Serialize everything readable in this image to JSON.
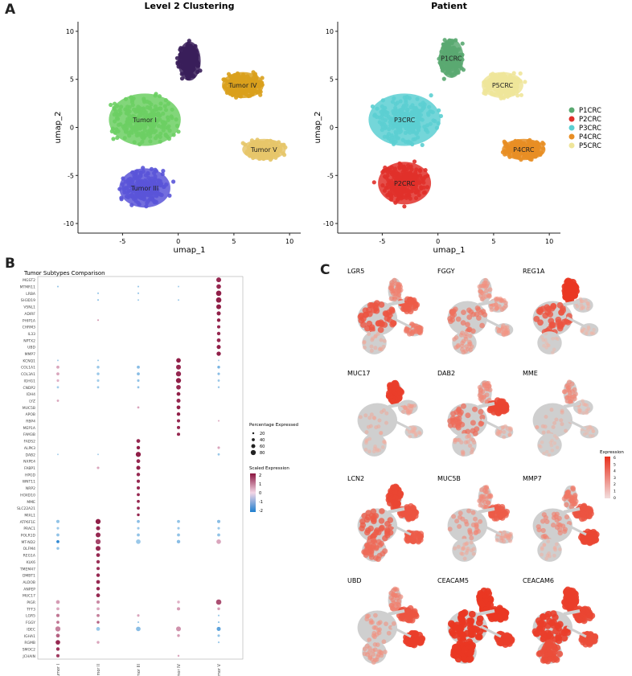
{
  "panels": {
    "a": "A",
    "b": "B",
    "c": "C"
  },
  "colors": {
    "Tumor I": "#6ccf63",
    "Tumor II": "#3a1e5a",
    "Tumor III": "#5a55d8",
    "Tumor IV": "#d9a01c",
    "Tumor V": "#e6c66a",
    "P1CRC": "#5aa971",
    "P2CRC": "#e0302a",
    "P3CRC": "#5ccfd2",
    "P4CRC": "#e88e24",
    "P5CRC": "#efe59a",
    "grey": "#cfcfcf",
    "feat_low": "#f7c0b0",
    "feat_high": "#e8301c"
  },
  "chart_data": [
    {
      "id": "umap_clusters",
      "type": "scatter",
      "title": "Level 2 Clustering",
      "xlabel": "umap_1",
      "ylabel": "umap_2",
      "xlim": [
        -9,
        11
      ],
      "ylim": [
        -11,
        11
      ],
      "xticks": [
        -5,
        0,
        5,
        10
      ],
      "yticks": [
        10,
        5,
        0,
        -5,
        -10
      ],
      "series": [
        {
          "name": "Tumor I",
          "label": "Tumor I",
          "center": [
            -3,
            0.8
          ],
          "spread": [
            3.8,
            3.2
          ]
        },
        {
          "name": "Tumor II",
          "label": "",
          "center": [
            1.0,
            6.9
          ],
          "spread": [
            1.2,
            2.4
          ]
        },
        {
          "name": "Tumor III",
          "label": "Tumor III",
          "center": [
            -3,
            -6.3
          ],
          "spread": [
            2.7,
            2.4
          ]
        },
        {
          "name": "Tumor IV",
          "label": "Tumor IV",
          "center": [
            5.8,
            4.4
          ],
          "spread": [
            2.2,
            1.6
          ]
        },
        {
          "name": "Tumor V",
          "label": "Tumor V",
          "center": [
            7.7,
            -2.3
          ],
          "spread": [
            2.3,
            1.3
          ]
        }
      ]
    },
    {
      "id": "umap_patient",
      "type": "scatter",
      "title": "Patient",
      "xlabel": "umap_1",
      "ylabel": "umap_2",
      "xlim": [
        -9,
        11
      ],
      "ylim": [
        -11,
        11
      ],
      "xticks": [
        -5,
        0,
        5,
        10
      ],
      "yticks": [
        10,
        5,
        0,
        -5,
        -10
      ],
      "series": [
        {
          "name": "P1CRC",
          "label": "P1CRC",
          "center": [
            1.2,
            7.2
          ],
          "spread": [
            1.3,
            2.4
          ]
        },
        {
          "name": "P2CRC",
          "label": "P2CRC",
          "center": [
            -3,
            -5.8
          ],
          "spread": [
            2.8,
            2.6
          ]
        },
        {
          "name": "P3CRC",
          "label": "P3CRC",
          "center": [
            -3,
            0.8
          ],
          "spread": [
            3.8,
            3.2
          ]
        },
        {
          "name": "P4CRC",
          "label": "P4CRC",
          "center": [
            7.7,
            -2.3
          ],
          "spread": [
            2.3,
            1.3
          ]
        },
        {
          "name": "P5CRC",
          "label": "P5CRC",
          "center": [
            5.8,
            4.4
          ],
          "spread": [
            2.2,
            1.6
          ]
        }
      ],
      "legend": [
        "P1CRC",
        "P2CRC",
        "P3CRC",
        "P4CRC",
        "P5CRC"
      ]
    },
    {
      "id": "dotplot",
      "type": "scatter",
      "title": "Tumor Subtypes Comparison",
      "groups": [
        "Tumor I",
        "Tumor II",
        "Tumor III",
        "Tumor IV",
        "Tumor V"
      ],
      "genes": [
        "MGST2",
        "MTMR11",
        "LRBA",
        "SH3D19",
        "VSNL1",
        "ADIRF",
        "PHIP1A",
        "CHRM3",
        "IL33",
        "NPTX2",
        "UBD",
        "MMP7",
        "KCNQ1",
        "COL1A1",
        "COL3A1",
        "IGHG1",
        "CNDP2",
        "IDH4",
        "LYZ",
        "MUC5B",
        "APOB",
        "RBP4",
        "MEP1A",
        "FAM3B",
        "FADS2",
        "ALPK3",
        "DAB2",
        "NXPE4",
        "FABP1",
        "HPGD",
        "WNT11",
        "NRP2",
        "HOXD10",
        "MME",
        "SLC22A21",
        "MIXL1",
        "ATP6F1E",
        "PRAC1",
        "POLR1D",
        "MT-ND2",
        "OLFM4",
        "REG1A",
        "KLK6",
        "TMEM47",
        "DMBT1",
        "ALDOB",
        "ANPEP",
        "MUC17",
        "PIGR",
        "TFF3",
        "LGR5",
        "FGGY",
        "IDEC",
        "IGHA1",
        "RGMB",
        "SMOC2",
        "JCHAIN"
      ],
      "legend_size_title": "Percentage Expressed",
      "legend_sizes": [
        20,
        40,
        60,
        80
      ],
      "legend_color_title": "Scaled Expression",
      "legend_color_ticks": [
        2,
        1,
        0,
        -1,
        -2
      ],
      "dots": [
        [
          0,
          4,
          1.8,
          75
        ],
        [
          1,
          0,
          -0.6,
          15
        ],
        [
          1,
          2,
          -0.6,
          15
        ],
        [
          1,
          3,
          -0.5,
          12
        ],
        [
          1,
          4,
          1.8,
          70
        ],
        [
          2,
          1,
          -0.6,
          15
        ],
        [
          2,
          2,
          -0.6,
          15
        ],
        [
          2,
          4,
          1.9,
          85
        ],
        [
          3,
          1,
          -0.7,
          15
        ],
        [
          3,
          2,
          -0.6,
          12
        ],
        [
          3,
          3,
          -0.6,
          12
        ],
        [
          3,
          4,
          1.9,
          85
        ],
        [
          4,
          4,
          1.9,
          75
        ],
        [
          5,
          4,
          1.9,
          60
        ],
        [
          6,
          1,
          0.6,
          15
        ],
        [
          6,
          4,
          1.9,
          50
        ],
        [
          7,
          4,
          1.8,
          45
        ],
        [
          8,
          4,
          1.8,
          50
        ],
        [
          9,
          4,
          1.8,
          55
        ],
        [
          10,
          4,
          1.9,
          60
        ],
        [
          11,
          4,
          1.9,
          65
        ],
        [
          12,
          0,
          -0.6,
          12
        ],
        [
          12,
          1,
          -0.7,
          12
        ],
        [
          12,
          3,
          1.9,
          70
        ],
        [
          12,
          4,
          -0.5,
          12
        ],
        [
          13,
          0,
          0.5,
          40
        ],
        [
          13,
          1,
          -0.6,
          35
        ],
        [
          13,
          2,
          -0.8,
          40
        ],
        [
          13,
          3,
          1.8,
          75
        ],
        [
          13,
          4,
          -1.0,
          35
        ],
        [
          14,
          0,
          0.5,
          40
        ],
        [
          14,
          1,
          -0.6,
          35
        ],
        [
          14,
          2,
          -0.8,
          40
        ],
        [
          14,
          3,
          1.8,
          80
        ],
        [
          14,
          4,
          -0.8,
          30
        ],
        [
          15,
          0,
          0.4,
          30
        ],
        [
          15,
          1,
          -0.5,
          30
        ],
        [
          15,
          2,
          -0.7,
          30
        ],
        [
          15,
          3,
          1.9,
          80
        ],
        [
          15,
          4,
          -0.6,
          25
        ],
        [
          16,
          0,
          -0.5,
          25
        ],
        [
          16,
          1,
          -0.6,
          25
        ],
        [
          16,
          2,
          -0.7,
          25
        ],
        [
          16,
          3,
          1.8,
          70
        ],
        [
          16,
          4,
          -0.6,
          20
        ],
        [
          17,
          3,
          1.9,
          55
        ],
        [
          18,
          0,
          0.5,
          25
        ],
        [
          18,
          3,
          1.8,
          60
        ],
        [
          19,
          2,
          0.5,
          25
        ],
        [
          19,
          3,
          1.9,
          55
        ],
        [
          20,
          3,
          1.9,
          50
        ],
        [
          21,
          3,
          1.8,
          45
        ],
        [
          21,
          4,
          0.4,
          15
        ],
        [
          22,
          3,
          1.8,
          45
        ],
        [
          23,
          3,
          1.8,
          45
        ],
        [
          24,
          2,
          1.8,
          55
        ],
        [
          25,
          2,
          1.9,
          50
        ],
        [
          25,
          4,
          0.5,
          30
        ],
        [
          26,
          0,
          -0.5,
          12
        ],
        [
          26,
          1,
          -0.5,
          12
        ],
        [
          26,
          2,
          1.9,
          80
        ],
        [
          26,
          4,
          -0.6,
          25
        ],
        [
          27,
          2,
          1.8,
          55
        ],
        [
          28,
          1,
          0.5,
          30
        ],
        [
          28,
          2,
          1.9,
          60
        ],
        [
          29,
          2,
          1.8,
          50
        ],
        [
          30,
          2,
          1.8,
          45
        ],
        [
          31,
          2,
          1.8,
          45
        ],
        [
          32,
          2,
          1.8,
          40
        ],
        [
          33,
          2,
          1.8,
          40
        ],
        [
          34,
          2,
          1.8,
          40
        ],
        [
          35,
          2,
          1.8,
          35
        ],
        [
          36,
          0,
          -0.7,
          45
        ],
        [
          36,
          1,
          1.9,
          80
        ],
        [
          36,
          2,
          -0.8,
          40
        ],
        [
          36,
          3,
          -0.7,
          40
        ],
        [
          36,
          4,
          -0.8,
          45
        ],
        [
          37,
          0,
          -0.6,
          30
        ],
        [
          37,
          1,
          1.8,
          60
        ],
        [
          37,
          2,
          -0.6,
          30
        ],
        [
          37,
          3,
          -0.6,
          30
        ],
        [
          37,
          4,
          -0.6,
          30
        ],
        [
          38,
          0,
          -0.7,
          40
        ],
        [
          38,
          1,
          1.8,
          75
        ],
        [
          38,
          2,
          -0.7,
          40
        ],
        [
          38,
          3,
          -0.7,
          40
        ],
        [
          38,
          4,
          -0.7,
          40
        ],
        [
          39,
          0,
          -1.8,
          40
        ],
        [
          39,
          1,
          1.5,
          80
        ],
        [
          39,
          2,
          -0.6,
          70
        ],
        [
          39,
          3,
          -0.8,
          50
        ],
        [
          39,
          4,
          0.5,
          70
        ],
        [
          40,
          0,
          -0.7,
          35
        ],
        [
          40,
          1,
          1.8,
          75
        ],
        [
          41,
          1,
          1.8,
          55
        ],
        [
          42,
          1,
          1.7,
          50
        ],
        [
          43,
          1,
          1.7,
          45
        ],
        [
          44,
          1,
          1.8,
          50
        ],
        [
          45,
          1,
          1.8,
          55
        ],
        [
          46,
          1,
          1.8,
          50
        ],
        [
          47,
          1,
          1.8,
          55
        ],
        [
          48,
          0,
          0.6,
          55
        ],
        [
          48,
          1,
          0.8,
          45
        ],
        [
          48,
          3,
          0.4,
          35
        ],
        [
          48,
          4,
          1.4,
          85
        ],
        [
          49,
          0,
          0.5,
          40
        ],
        [
          49,
          1,
          0.5,
          40
        ],
        [
          49,
          3,
          0.6,
          45
        ],
        [
          49,
          4,
          0.6,
          35
        ],
        [
          50,
          0,
          1.0,
          45
        ],
        [
          50,
          1,
          0.9,
          40
        ],
        [
          50,
          2,
          0.5,
          30
        ],
        [
          50,
          4,
          -0.6,
          15
        ],
        [
          51,
          0,
          1.0,
          40
        ],
        [
          51,
          1,
          1.2,
          35
        ],
        [
          51,
          2,
          -0.6,
          15
        ],
        [
          51,
          4,
          -0.7,
          15
        ],
        [
          52,
          0,
          0.9,
          80
        ],
        [
          52,
          1,
          -0.6,
          55
        ],
        [
          52,
          2,
          -0.8,
          70
        ],
        [
          52,
          3,
          0.7,
          75
        ],
        [
          52,
          4,
          -1.3,
          60
        ],
        [
          53,
          0,
          1.2,
          55
        ],
        [
          53,
          3,
          0.6,
          35
        ],
        [
          53,
          4,
          -0.7,
          30
        ],
        [
          54,
          0,
          1.8,
          70
        ],
        [
          54,
          1,
          0.5,
          35
        ],
        [
          54,
          4,
          -0.6,
          15
        ],
        [
          55,
          0,
          1.7,
          50
        ],
        [
          56,
          0,
          1.6,
          45
        ],
        [
          56,
          3,
          0.5,
          20
        ]
      ]
    },
    {
      "id": "feature_plots",
      "type": "scatter",
      "legend_title": "Expression",
      "legend_ticks": [
        6,
        5,
        4,
        3,
        2,
        1,
        0
      ],
      "genes": [
        {
          "name": "LGR5",
          "levels": [
            0.75,
            0.45,
            0.2,
            0.7,
            0.5
          ]
        },
        {
          "name": "FGGY",
          "levels": [
            0.55,
            0.35,
            0.35,
            0.35,
            0.3
          ]
        },
        {
          "name": "REG1A",
          "levels": [
            0.75,
            0.95,
            0.1,
            0.15,
            0.1
          ]
        },
        {
          "name": "MUC17",
          "levels": [
            0.2,
            0.9,
            0.15,
            0.25,
            0.15
          ]
        },
        {
          "name": "DAB2",
          "levels": [
            0.6,
            0.4,
            0.25,
            0.85,
            0.2
          ]
        },
        {
          "name": "MME",
          "levels": [
            0.2,
            0.4,
            0.1,
            0.15,
            0.1
          ]
        },
        {
          "name": "LCN2",
          "levels": [
            0.7,
            0.85,
            0.6,
            0.75,
            0.7
          ]
        },
        {
          "name": "MUC5B",
          "levels": [
            0.4,
            0.4,
            0.2,
            0.7,
            0.25
          ]
        },
        {
          "name": "MMP7",
          "levels": [
            0.45,
            0.5,
            0.15,
            0.75,
            0.85
          ]
        },
        {
          "name": "UBD",
          "levels": [
            0.35,
            0.45,
            0.35,
            0.75,
            0.9
          ]
        },
        {
          "name": "CEACAM5",
          "levels": [
            0.95,
            0.95,
            0.95,
            0.95,
            0.9
          ]
        },
        {
          "name": "CEACAM6",
          "levels": [
            0.9,
            0.9,
            0.8,
            0.85,
            0.8
          ]
        }
      ]
    }
  ]
}
